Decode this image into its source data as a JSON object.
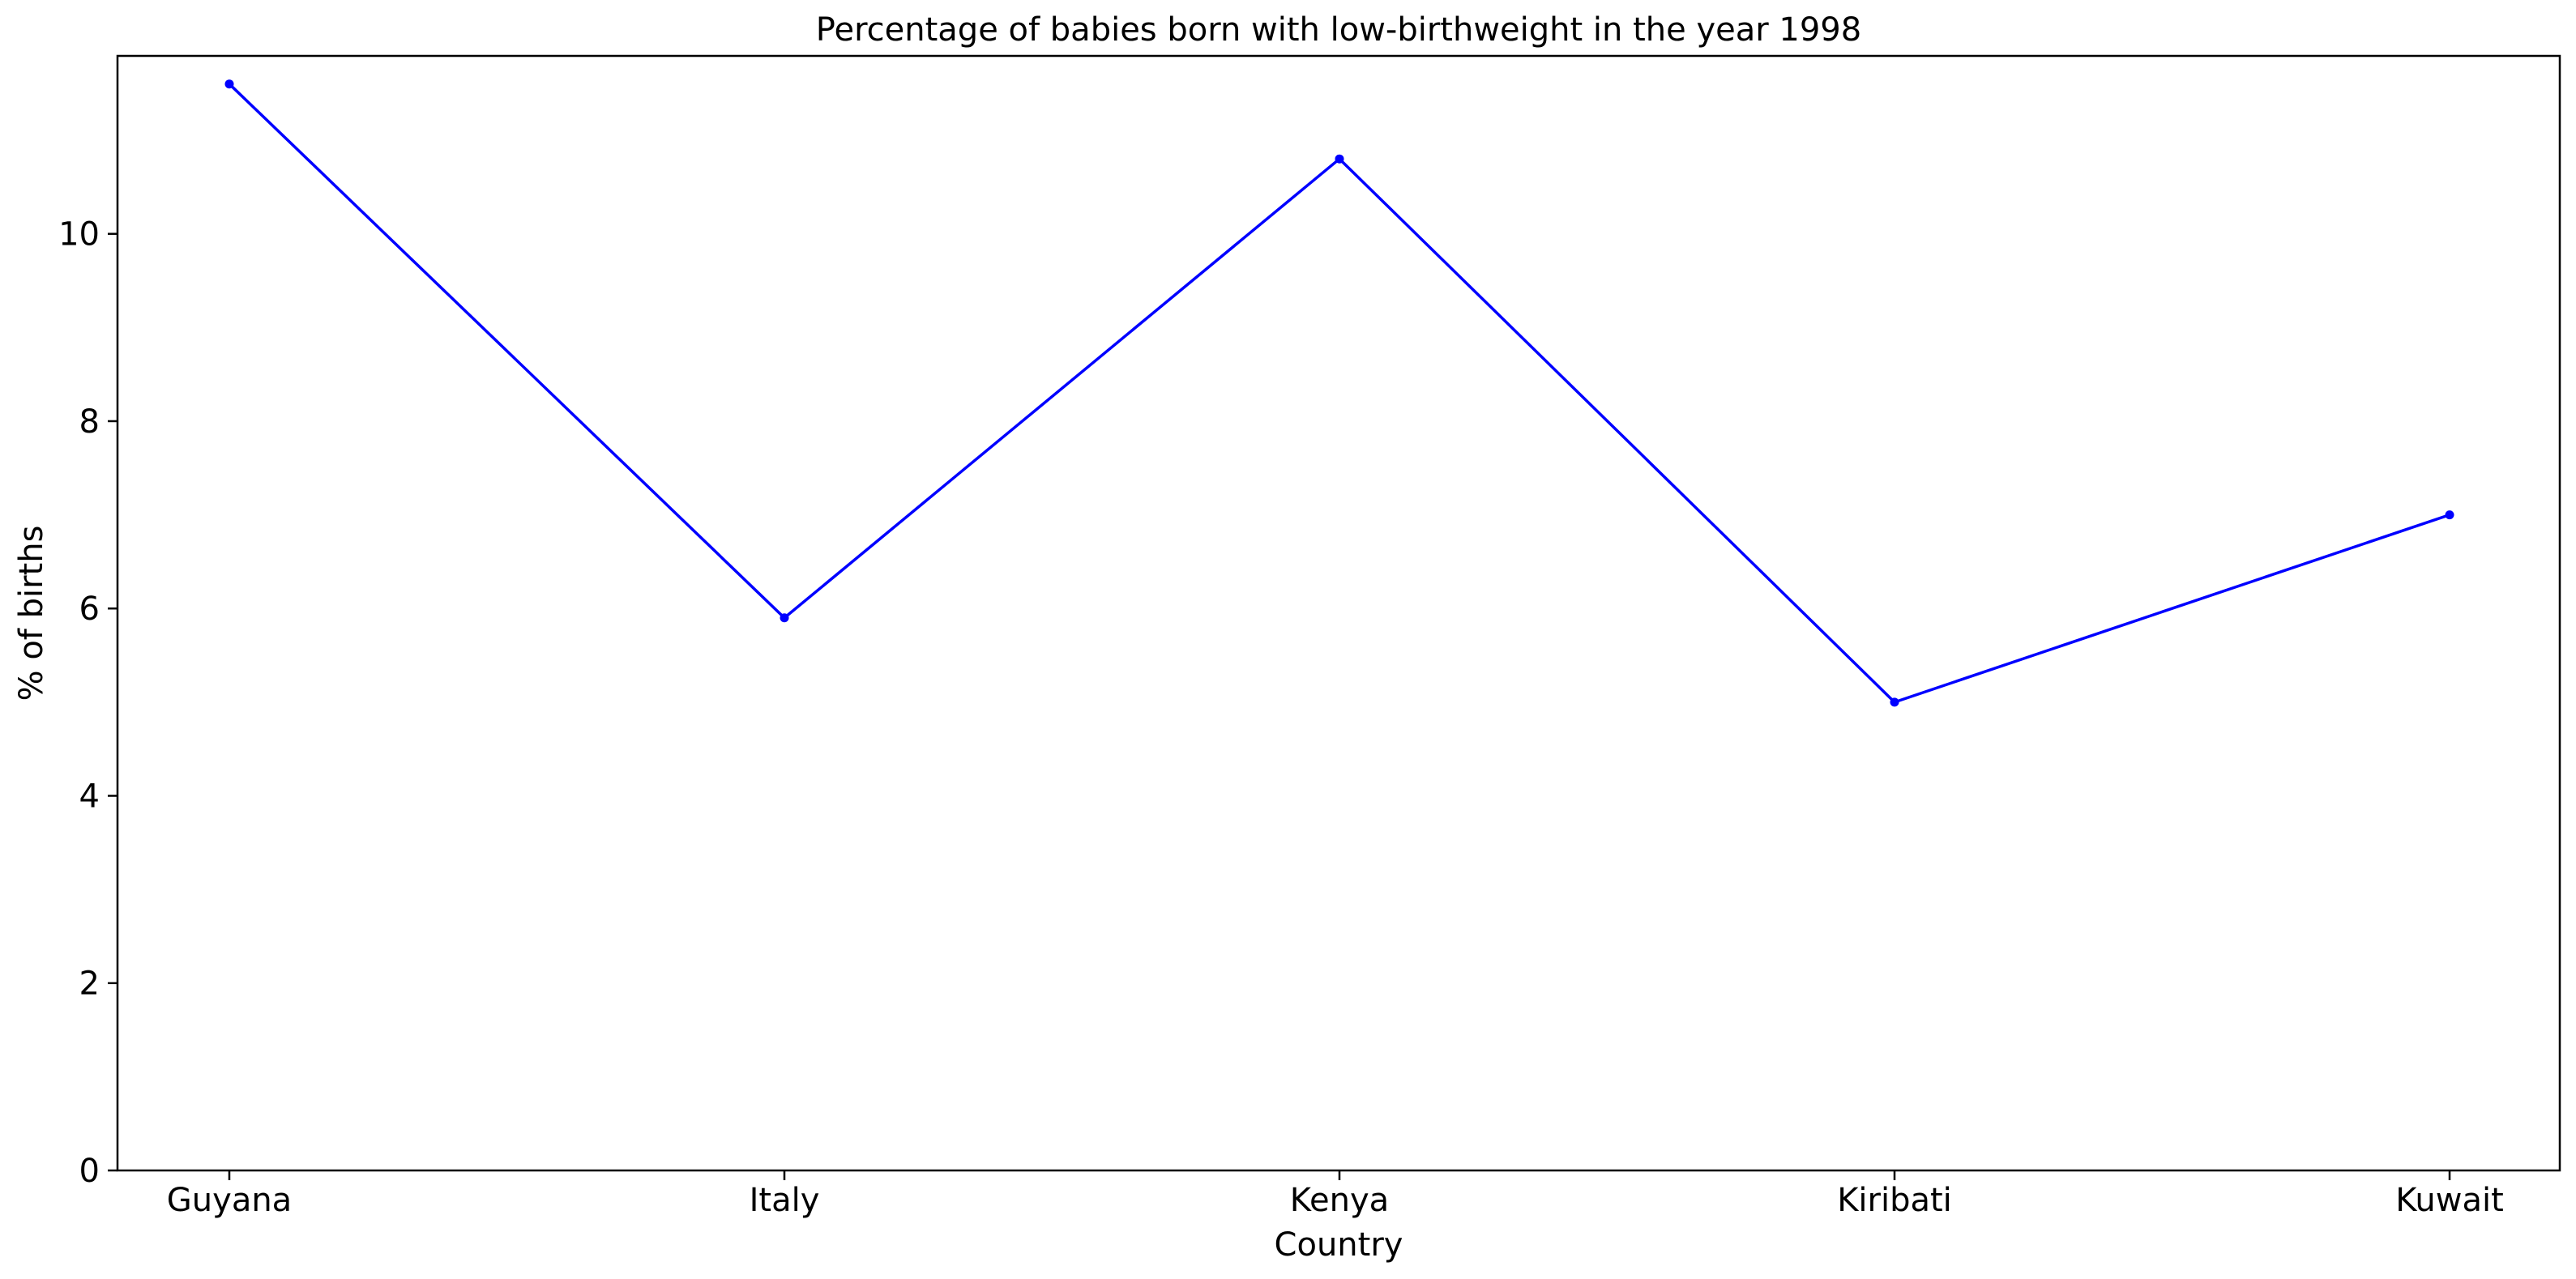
{
  "chart_data": {
    "type": "line",
    "title": "Percentage of babies born with low-birthweight in the year 1998",
    "xlabel": "Country",
    "ylabel": "% of births",
    "categories": [
      "Guyana",
      "Italy",
      "Kenya",
      "Kiribati",
      "Kuwait"
    ],
    "series": [
      {
        "values": [
          11.6,
          5.9,
          10.8,
          5.0,
          7.0
        ],
        "color": "#0000ff"
      }
    ],
    "ylim": [
      0,
      11.9
    ],
    "yticks": [
      0,
      2,
      4,
      6,
      8,
      10
    ],
    "grid": false,
    "legend": "none"
  }
}
